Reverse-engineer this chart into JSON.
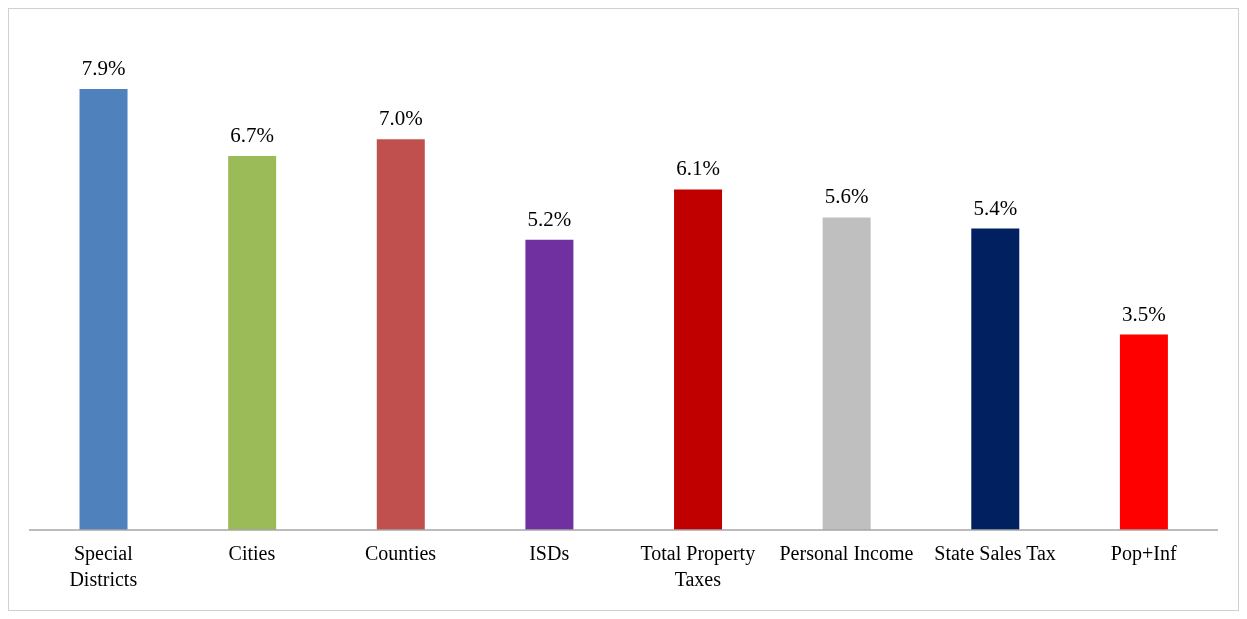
{
  "chart_data": {
    "type": "bar",
    "categories": [
      "Special Districts",
      "Cities",
      "Counties",
      "ISDs",
      "Total Property Taxes",
      "Personal Income",
      "State Sales Tax",
      "Pop+Inf"
    ],
    "values": [
      7.9,
      6.7,
      7.0,
      5.2,
      6.1,
      5.6,
      5.4,
      3.5
    ],
    "colors": [
      "#4f81bd",
      "#9bbb59",
      "#c0504d",
      "#7030a0",
      "#c00000",
      "#bfbfbf",
      "#002060",
      "#ff0000"
    ],
    "value_labels": [
      "7.9%",
      "6.7%",
      "7.0%",
      "5.2%",
      "6.1%",
      "5.6%",
      "5.4%",
      "3.5%"
    ],
    "grid": false,
    "legend": false
  }
}
